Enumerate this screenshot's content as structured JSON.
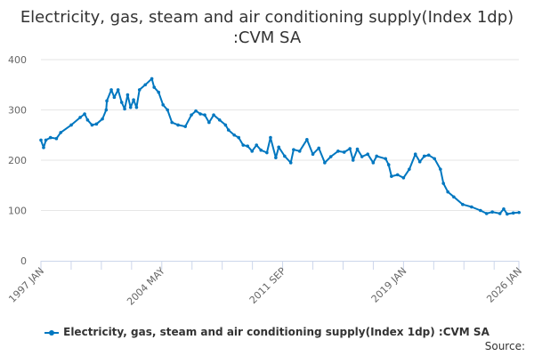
{
  "chart_data": {
    "type": "line",
    "title": "Electricity, gas, steam and air conditioning supply(Index 1dp) :CVM SA",
    "xlabel": "",
    "ylabel": "",
    "ylim": [
      0,
      400
    ],
    "xlim": [
      1997.0,
      2026.0
    ],
    "yticks": [
      "0",
      "100",
      "200",
      "300",
      "400"
    ],
    "yticks_values": [
      0,
      100,
      200,
      300,
      400
    ],
    "xticks": [
      {
        "label": "1997 JAN",
        "value": 1997.0
      },
      {
        "label": "2004 MAY",
        "value": 2004.33
      },
      {
        "label": "2011 SEP",
        "value": 2011.67
      },
      {
        "label": "2019 JAN",
        "value": 2019.0
      },
      {
        "label": "2026 JAN",
        "value": 2026.0
      }
    ],
    "grid": true,
    "legend_position": "bottom",
    "color": "#0077c0",
    "series": [
      {
        "name": "Electricity, gas, steam and air conditioning supply(Index 1dp) :CVM SA",
        "x": [
          1997.0,
          1997.16,
          1997.3,
          1997.58,
          1997.94,
          1998.2,
          1998.84,
          1999.38,
          1999.65,
          1999.83,
          2000.1,
          2000.37,
          2000.73,
          2000.96,
          2001.0,
          2001.27,
          2001.45,
          2001.68,
          2001.9,
          2002.08,
          2002.26,
          2002.44,
          2002.62,
          2002.8,
          2002.98,
          2003.33,
          2003.73,
          2003.87,
          2004.14,
          2004.41,
          2004.68,
          2004.95,
          2005.32,
          2005.76,
          2006.13,
          2006.4,
          2006.67,
          2006.94,
          2007.2,
          2007.48,
          2007.84,
          2008.2,
          2008.38,
          2008.73,
          2009.0,
          2009.27,
          2009.54,
          2009.81,
          2010.08,
          2010.35,
          2010.71,
          2010.93,
          2011.25,
          2011.43,
          2011.79,
          2012.16,
          2012.33,
          2012.7,
          2013.14,
          2013.5,
          2013.86,
          2014.22,
          2014.59,
          2015.03,
          2015.4,
          2015.75,
          2015.94,
          2016.2,
          2016.48,
          2016.83,
          2017.16,
          2017.37,
          2017.91,
          2018.1,
          2018.27,
          2018.64,
          2019.0,
          2019.35,
          2019.72,
          2019.99,
          2020.26,
          2020.53,
          2020.88,
          2021.24,
          2021.42,
          2021.69,
          2022.05,
          2022.59,
          2023.13,
          2023.67,
          2024.04,
          2024.39,
          2024.85,
          2025.08,
          2025.29,
          2025.66,
          2026.01
        ],
        "values": [
          240,
          225,
          240,
          245,
          243,
          255,
          270,
          285,
          292,
          280,
          270,
          272,
          282,
          300,
          318,
          340,
          325,
          340,
          315,
          302,
          330,
          305,
          320,
          305,
          340,
          350,
          362,
          345,
          335,
          310,
          300,
          275,
          270,
          267,
          290,
          298,
          292,
          290,
          275,
          290,
          280,
          270,
          260,
          250,
          245,
          230,
          228,
          218,
          230,
          220,
          215,
          245,
          205,
          226,
          208,
          195,
          221,
          218,
          241,
          212,
          224,
          195,
          207,
          218,
          216,
          223,
          200,
          222,
          207,
          212,
          195,
          208,
          203,
          191,
          168,
          171,
          165,
          182,
          212,
          197,
          208,
          210,
          203,
          182,
          154,
          137,
          127,
          112,
          107,
          100,
          94,
          97,
          94,
          103,
          93,
          95,
          96
        ]
      }
    ],
    "source_label": "Source:"
  }
}
